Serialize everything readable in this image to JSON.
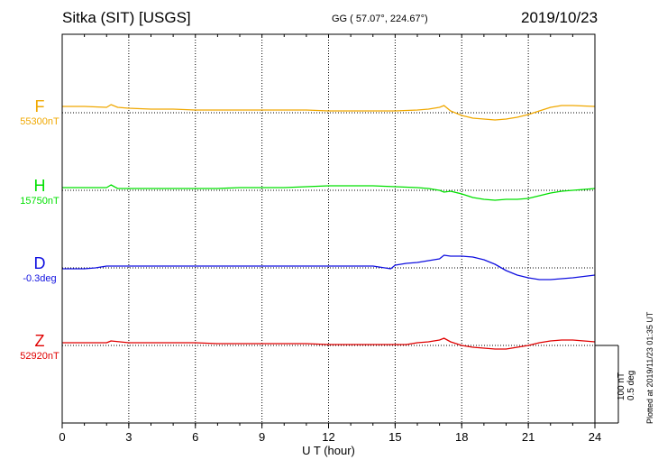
{
  "header": {
    "title": "Sitka (SIT)  [USGS]",
    "coords": "GG ( 57.07°, 224.67°)",
    "date": "2019/10/23"
  },
  "footer": {
    "plotted": "Plotted at 2019/11/23 01:35 UT",
    "scale_line1": "100 nT",
    "scale_line2": "0.5 deg"
  },
  "chart_data": {
    "type": "line",
    "xlabel": "U T (hour)",
    "xlim": [
      0,
      24
    ],
    "xticks": [
      "0",
      "3",
      "6",
      "9",
      "12",
      "15",
      "18",
      "21",
      "24"
    ],
    "series": [
      {
        "name": "F",
        "baseline_label": "55300nT",
        "color": "#f0a800",
        "x": [
          0,
          1,
          2,
          2.2,
          2.5,
          3,
          4,
          5,
          6,
          7,
          8,
          9,
          10,
          11,
          12,
          13,
          14,
          15,
          16,
          16.5,
          17,
          17.2,
          17.5,
          18,
          18.5,
          19,
          19.5,
          20,
          20.5,
          21,
          21.5,
          22,
          22.5,
          23,
          24
        ],
        "values": [
          7,
          7,
          6,
          9,
          6,
          5,
          4,
          4,
          3,
          3,
          3,
          3,
          3,
          3,
          2,
          2,
          2,
          2,
          3,
          4,
          6,
          8,
          2,
          -3,
          -6,
          -7,
          -8,
          -7,
          -5,
          -2,
          2,
          6,
          8,
          8,
          7
        ]
      },
      {
        "name": "H",
        "baseline_label": "15750nT",
        "color": "#00e000",
        "x": [
          0,
          1,
          2,
          2.2,
          2.5,
          3,
          4,
          5,
          6,
          7,
          8,
          9,
          10,
          11,
          12,
          13,
          14,
          15,
          16,
          16.5,
          17,
          17.2,
          17.5,
          18,
          18.5,
          19,
          19.5,
          20,
          20.5,
          21,
          21.5,
          22,
          22.5,
          23,
          24
        ],
        "values": [
          3,
          3,
          3,
          6,
          2,
          2,
          2,
          2,
          2,
          2,
          3,
          3,
          3,
          4,
          5,
          5,
          5,
          4,
          3,
          2,
          0,
          -2,
          -1,
          -4,
          -8,
          -10,
          -11,
          -10,
          -10,
          -9,
          -6,
          -3,
          -1,
          0,
          2
        ]
      },
      {
        "name": "D",
        "baseline_label": "-0.3deg",
        "color": "#1010e0",
        "x": [
          0,
          1,
          1.5,
          2,
          3,
          4,
          5,
          6,
          7,
          8,
          9,
          10,
          11,
          12,
          13,
          14,
          14.8,
          15,
          15.5,
          16,
          16.5,
          17,
          17.2,
          17.5,
          18,
          18.5,
          19,
          19.5,
          20,
          20.5,
          21,
          21.5,
          22,
          22.5,
          23,
          24
        ],
        "values": [
          -1,
          -1,
          0,
          2,
          2,
          2,
          2,
          2,
          2,
          2,
          2,
          2,
          2,
          2,
          2,
          2,
          -1,
          3,
          5,
          6,
          8,
          10,
          14,
          13,
          13,
          12,
          9,
          4,
          -3,
          -8,
          -11,
          -13,
          -13,
          -12,
          -11,
          -8
        ]
      },
      {
        "name": "Z",
        "baseline_label": "52920nT",
        "color": "#e00000",
        "x": [
          0,
          1,
          2,
          2.2,
          3,
          4,
          5,
          6,
          7,
          8,
          9,
          10,
          11,
          12,
          13,
          14,
          15,
          15.5,
          16,
          16.5,
          17,
          17.2,
          17.5,
          18,
          18.5,
          19,
          19.5,
          20,
          20.5,
          21,
          21.5,
          22,
          22.5,
          23,
          24
        ],
        "values": [
          3,
          3,
          3,
          5,
          3,
          3,
          3,
          3,
          2,
          2,
          2,
          2,
          2,
          1,
          1,
          1,
          1,
          1,
          3,
          4,
          6,
          8,
          4,
          0,
          -2,
          -3,
          -4,
          -4,
          -2,
          0,
          3,
          5,
          6,
          6,
          4
        ]
      }
    ],
    "grid": true
  }
}
